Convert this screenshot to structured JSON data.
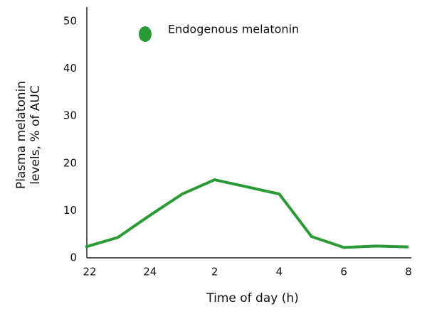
{
  "chart_data": {
    "type": "line",
    "categories": [
      "22",
      null,
      "24",
      null,
      "2",
      null,
      "4",
      null,
      "6",
      null,
      "8"
    ],
    "series": [
      {
        "name": "Endogenous melatonin",
        "color": "#2a9a35",
        "values": [
          2.3,
          4.3,
          9,
          13.5,
          16.5,
          15,
          13.5,
          4.5,
          2.2,
          2.5,
          2.3
        ]
      }
    ],
    "ylim": [
      0,
      53
    ],
    "yticks": [
      0,
      10,
      20,
      30,
      40,
      50
    ],
    "x_label": "Time of day (h)",
    "y_label": [
      "Plasma melatonin",
      "levels, % of AUC"
    ],
    "grid": false
  }
}
